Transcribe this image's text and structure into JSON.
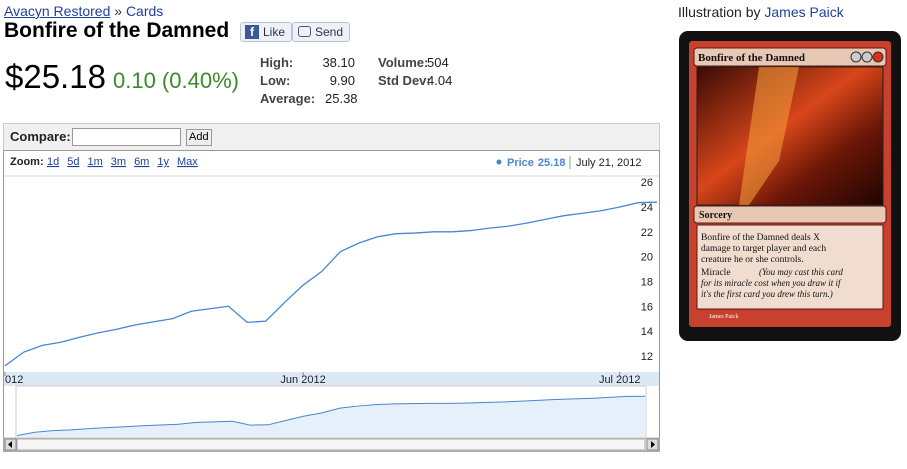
{
  "breadcrumb": {
    "set": "Avacyn Restored",
    "separator": "»",
    "section": "Cards"
  },
  "title": "Bonfire of the Damned",
  "buttons": {
    "like": "Like",
    "send": "Send"
  },
  "price": "$25.18",
  "change": "0.10 (0.40%)",
  "stats": [
    {
      "label": "High:",
      "value": "38.10"
    },
    {
      "label": "Low:",
      "value": "9.90"
    },
    {
      "label": "Average:",
      "value": "25.38"
    },
    {
      "label": "Volume:",
      "value": "504"
    },
    {
      "label": "Std Dev:",
      "value": "4.04"
    }
  ],
  "compare": {
    "label": "Compare:",
    "button": "Add"
  },
  "chart_data": {
    "type": "line",
    "zoom_label": "Zoom:",
    "zoom_options": [
      "1d",
      "5d",
      "1m",
      "3m",
      "6m",
      "1y",
      "Max"
    ],
    "legend_value": "25.18",
    "legend_date": "July 21, 2012",
    "categories": [
      "012",
      null,
      null,
      null,
      null,
      null,
      null,
      null,
      null,
      null,
      null,
      null,
      null,
      null,
      null,
      null,
      "Jun 2012",
      null,
      null,
      null,
      null,
      null,
      null,
      null,
      null,
      null,
      null,
      null,
      null,
      null,
      null,
      null,
      null,
      "Jul 2012",
      null,
      null
    ],
    "series": [
      {
        "name": "Price",
        "color": "#4a86cc",
        "values": [
          11.2,
          12.3,
          12.85,
          13.1,
          13.5,
          13.85,
          14.15,
          14.5,
          14.75,
          15.0,
          15.6,
          15.8,
          16.0,
          14.7,
          14.8,
          16.3,
          17.7,
          18.8,
          20.4,
          21.1,
          21.6,
          21.85,
          21.9,
          22.0,
          22.0,
          22.1,
          22.3,
          22.45,
          22.7,
          23.0,
          23.3,
          23.5,
          23.7,
          24.0,
          24.35,
          24.4
        ]
      }
    ],
    "ylim": [
      10.7,
      26.5
    ],
    "yticks": [
      12,
      14,
      16,
      18,
      20,
      22,
      24,
      26
    ],
    "grid": false
  },
  "illustration": {
    "label": "Illustration by",
    "artist": "James Paick"
  },
  "card": {
    "name": "Bonfire of the Damned",
    "type": "Sorcery",
    "rules": [
      "Bonfire of the Damned deals X",
      "damage to target player and each",
      "creature he or she controls."
    ],
    "miracle": "Miracle",
    "reminder": [
      "(You may cast this card",
      "for its miracle cost when you draw it if",
      "it's the first card you drew this turn.)"
    ],
    "artist": "James Paick"
  }
}
